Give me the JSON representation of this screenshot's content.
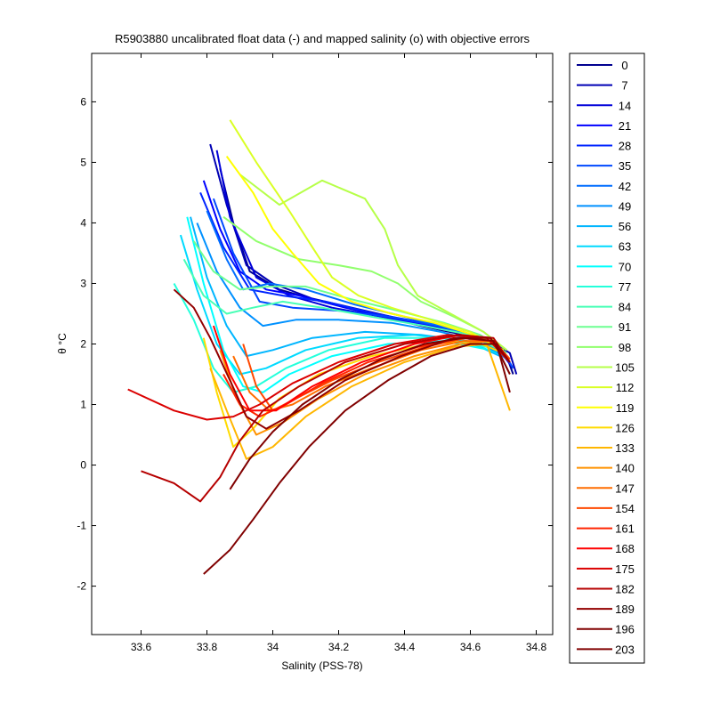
{
  "chart_data": {
    "type": "line",
    "title": "R5903880 uncalibrated float data (-) and mapped salinity (o) with objective errors",
    "xlabel": "Salinity (PSS-78)",
    "ylabel": "θ °C",
    "xlim": [
      33.45,
      34.85
    ],
    "ylim": [
      -2.8,
      6.8
    ],
    "xticks": [
      "33.6",
      "33.8",
      "34",
      "34.2",
      "34.4",
      "34.6",
      "34.8"
    ],
    "yticks": [
      "-2",
      "-1",
      "0",
      "1",
      "2",
      "3",
      "4",
      "5",
      "6"
    ],
    "grid": false,
    "legend": {
      "placement": "outside-right",
      "entries": [
        "0",
        "7",
        "14",
        "21",
        "28",
        "35",
        "42",
        "49",
        "56",
        "63",
        "70",
        "77",
        "84",
        "91",
        "98",
        "105",
        "112",
        "119",
        "126",
        "133",
        "140",
        "147",
        "154",
        "161",
        "168",
        "175",
        "182",
        "189",
        "196",
        "203"
      ],
      "colors": [
        "#00008f",
        "#0000b4",
        "#0000d9",
        "#0000ff",
        "#0024ff",
        "#0048ff",
        "#006dff",
        "#0091ff",
        "#00b6ff",
        "#00daff",
        "#00ffff",
        "#24ffdb",
        "#48ffb6",
        "#6dff92",
        "#91ff6d",
        "#b6ff48",
        "#daff24",
        "#ffff00",
        "#ffdb00",
        "#ffb600",
        "#ff9200",
        "#ff6d00",
        "#ff4800",
        "#ff2400",
        "#ff0000",
        "#db0000",
        "#b60000",
        "#920000",
        "#800000",
        "#800000"
      ]
    },
    "series": [
      {
        "name": "0",
        "x": [
          33.84,
          33.88,
          33.93,
          34.02,
          34.15,
          34.3,
          34.45,
          34.58,
          34.66,
          34.71,
          34.73
        ],
        "y": [
          4.9,
          4.0,
          3.2,
          2.9,
          2.7,
          2.5,
          2.3,
          2.15,
          2.0,
          1.8,
          1.5
        ]
      },
      {
        "name": "7",
        "x": [
          33.81,
          33.86,
          33.92,
          34.0,
          34.12,
          34.28,
          34.44,
          34.57,
          34.66,
          34.72,
          34.74
        ],
        "y": [
          5.3,
          4.3,
          3.3,
          3.0,
          2.75,
          2.55,
          2.35,
          2.2,
          2.05,
          1.85,
          1.5
        ]
      },
      {
        "name": "14",
        "x": [
          33.83,
          33.87,
          33.95,
          34.05,
          34.18,
          34.33,
          34.48,
          34.6,
          34.68,
          34.73
        ],
        "y": [
          5.2,
          4.1,
          3.1,
          2.8,
          2.6,
          2.45,
          2.3,
          2.15,
          1.95,
          1.6
        ]
      },
      {
        "name": "21",
        "x": [
          33.79,
          33.84,
          33.9,
          33.98,
          34.08,
          34.22,
          34.38,
          34.52,
          34.63,
          34.71
        ],
        "y": [
          4.7,
          3.9,
          3.2,
          2.9,
          2.8,
          2.6,
          2.4,
          2.25,
          2.1,
          1.8
        ]
      },
      {
        "name": "28",
        "x": [
          33.78,
          33.85,
          33.93,
          34.03,
          34.16,
          34.31,
          34.46,
          34.58,
          34.67,
          34.72
        ],
        "y": [
          4.5,
          3.6,
          2.9,
          2.8,
          2.7,
          2.5,
          2.35,
          2.2,
          2.0,
          1.7
        ]
      },
      {
        "name": "35",
        "x": [
          33.82,
          33.88,
          33.96,
          34.06,
          34.2,
          34.35,
          34.5,
          34.61,
          34.69,
          34.73
        ],
        "y": [
          4.4,
          3.5,
          2.7,
          2.6,
          2.55,
          2.45,
          2.3,
          2.15,
          1.95,
          1.6
        ]
      },
      {
        "name": "42",
        "x": [
          33.8,
          33.86,
          33.91,
          33.99,
          34.1,
          34.25,
          34.4,
          34.54,
          34.64,
          34.71
        ],
        "y": [
          4.2,
          3.4,
          2.9,
          3.0,
          2.9,
          2.65,
          2.45,
          2.25,
          2.05,
          1.75
        ]
      },
      {
        "name": "49",
        "x": [
          33.77,
          33.83,
          33.9,
          33.97,
          34.07,
          34.2,
          34.36,
          34.51,
          34.62,
          34.7
        ],
        "y": [
          4.0,
          3.2,
          2.6,
          2.3,
          2.4,
          2.4,
          2.35,
          2.2,
          2.05,
          1.8
        ]
      },
      {
        "name": "56",
        "x": [
          33.75,
          33.8,
          33.86,
          33.92,
          34.0,
          34.12,
          34.28,
          34.45,
          34.59,
          34.69
        ],
        "y": [
          4.1,
          3.1,
          2.3,
          1.8,
          1.9,
          2.1,
          2.2,
          2.15,
          2.05,
          1.8
        ]
      },
      {
        "name": "63",
        "x": [
          33.72,
          33.77,
          33.83,
          33.9,
          33.98,
          34.1,
          34.26,
          34.43,
          34.58,
          34.68
        ],
        "y": [
          3.8,
          2.9,
          2.0,
          1.5,
          1.6,
          1.9,
          2.1,
          2.15,
          2.05,
          1.85
        ]
      },
      {
        "name": "70",
        "x": [
          33.74,
          33.79,
          33.85,
          33.91,
          33.97,
          34.05,
          34.18,
          34.35,
          34.52,
          34.66
        ],
        "y": [
          4.1,
          3.0,
          1.9,
          1.3,
          1.2,
          1.5,
          1.8,
          2.0,
          2.05,
          1.9
        ]
      },
      {
        "name": "77",
        "x": [
          33.7,
          33.76,
          33.82,
          33.88,
          33.95,
          34.04,
          34.17,
          34.34,
          34.51,
          34.65
        ],
        "y": [
          3.0,
          2.4,
          1.6,
          1.2,
          1.3,
          1.6,
          1.9,
          2.1,
          2.1,
          1.95
        ]
      },
      {
        "name": "84",
        "x": [
          33.73,
          33.79,
          33.86,
          33.94,
          34.03,
          34.15,
          34.3,
          34.46,
          34.6,
          34.69
        ],
        "y": [
          3.4,
          2.8,
          2.5,
          2.6,
          2.7,
          2.6,
          2.45,
          2.3,
          2.15,
          1.9
        ]
      },
      {
        "name": "91",
        "x": [
          33.76,
          33.82,
          33.9,
          33.99,
          34.1,
          34.23,
          34.38,
          34.52,
          34.63,
          34.71
        ],
        "y": [
          3.7,
          3.2,
          2.9,
          2.95,
          2.95,
          2.75,
          2.55,
          2.35,
          2.15,
          1.85
        ]
      },
      {
        "name": "98",
        "x": [
          33.85,
          33.95,
          34.08,
          34.2,
          34.3,
          34.38,
          34.45,
          34.55,
          34.64,
          34.71
        ],
        "y": [
          4.1,
          3.7,
          3.4,
          3.3,
          3.2,
          3.0,
          2.7,
          2.45,
          2.2,
          1.9
        ]
      },
      {
        "name": "105",
        "x": [
          33.9,
          34.02,
          34.15,
          34.28,
          34.34,
          34.38,
          34.44,
          34.54,
          34.64,
          34.71
        ],
        "y": [
          4.8,
          4.3,
          4.7,
          4.4,
          3.9,
          3.3,
          2.8,
          2.5,
          2.2,
          1.9
        ]
      },
      {
        "name": "112",
        "x": [
          33.87,
          33.95,
          34.05,
          34.12,
          34.18,
          34.26,
          34.36,
          34.48,
          34.6,
          34.7
        ],
        "y": [
          5.7,
          5.0,
          4.2,
          3.6,
          3.1,
          2.8,
          2.6,
          2.4,
          2.2,
          1.9
        ]
      },
      {
        "name": "119",
        "x": [
          33.86,
          33.94,
          34.0,
          34.06,
          34.14,
          34.24,
          34.36,
          34.49,
          34.61,
          34.7
        ],
        "y": [
          5.1,
          4.5,
          3.9,
          3.5,
          3.0,
          2.7,
          2.5,
          2.35,
          2.15,
          1.9
        ]
      },
      {
        "name": "126",
        "x": [
          33.79,
          33.83,
          33.88,
          33.94,
          34.02,
          34.14,
          34.3,
          34.47,
          34.61,
          34.7
        ],
        "y": [
          2.1,
          1.2,
          0.3,
          0.6,
          1.1,
          1.5,
          1.8,
          2.0,
          2.05,
          1.85
        ]
      },
      {
        "name": "133",
        "x": [
          33.81,
          33.86,
          33.92,
          34.0,
          34.1,
          34.24,
          34.4,
          34.55,
          34.65,
          34.72
        ],
        "y": [
          1.6,
          0.9,
          0.1,
          0.3,
          0.8,
          1.3,
          1.7,
          1.95,
          2.0,
          0.9
        ]
      },
      {
        "name": "140",
        "x": [
          33.84,
          33.89,
          33.95,
          34.03,
          34.14,
          34.28,
          34.43,
          34.57,
          34.66,
          34.72
        ],
        "y": [
          1.9,
          1.1,
          0.5,
          0.7,
          1.1,
          1.5,
          1.8,
          2.0,
          2.05,
          1.7
        ]
      },
      {
        "name": "147",
        "x": [
          33.88,
          33.93,
          33.99,
          34.06,
          34.16,
          34.3,
          34.45,
          34.58,
          34.67,
          34.72
        ],
        "y": [
          1.8,
          1.2,
          0.9,
          1.0,
          1.3,
          1.6,
          1.9,
          2.05,
          2.05,
          1.75
        ]
      },
      {
        "name": "154",
        "x": [
          33.91,
          33.95,
          34.0,
          34.07,
          34.18,
          34.32,
          34.46,
          34.59,
          34.67,
          34.72
        ],
        "y": [
          2.0,
          1.3,
          0.9,
          1.1,
          1.4,
          1.7,
          1.95,
          2.1,
          2.05,
          1.75
        ]
      },
      {
        "name": "161",
        "x": [
          33.85,
          33.9,
          33.96,
          34.04,
          34.15,
          34.29,
          34.44,
          34.57,
          34.66,
          34.72
        ],
        "y": [
          1.5,
          1.0,
          0.8,
          1.0,
          1.35,
          1.7,
          1.95,
          2.1,
          2.05,
          1.7
        ]
      },
      {
        "name": "168",
        "x": [
          33.82,
          33.87,
          33.93,
          34.01,
          34.12,
          34.27,
          34.43,
          34.57,
          34.66,
          34.72
        ],
        "y": [
          2.3,
          1.5,
          0.9,
          0.9,
          1.3,
          1.7,
          2.0,
          2.15,
          2.1,
          1.7
        ]
      },
      {
        "name": "175",
        "x": [
          33.56,
          33.7,
          33.8,
          33.88,
          33.96,
          34.06,
          34.2,
          34.37,
          34.53,
          34.65,
          34.72
        ],
        "y": [
          1.25,
          0.9,
          0.75,
          0.8,
          1.0,
          1.35,
          1.7,
          2.0,
          2.15,
          2.1,
          1.7
        ]
      },
      {
        "name": "182",
        "x": [
          33.6,
          33.7,
          33.78,
          33.84,
          33.9,
          33.97,
          34.08,
          34.22,
          34.4,
          34.56,
          34.67,
          34.72
        ],
        "y": [
          -0.1,
          -0.3,
          -0.6,
          -0.2,
          0.4,
          0.9,
          1.3,
          1.7,
          2.0,
          2.15,
          2.1,
          1.7
        ]
      },
      {
        "name": "189",
        "x": [
          33.7,
          33.76,
          33.81,
          33.87,
          33.92,
          33.98,
          34.08,
          34.22,
          34.39,
          34.55,
          34.66,
          34.72
        ],
        "y": [
          2.9,
          2.6,
          2.1,
          1.4,
          0.8,
          0.6,
          0.9,
          1.4,
          1.8,
          2.1,
          2.1,
          1.7
        ]
      },
      {
        "name": "196",
        "x": [
          33.87,
          33.93,
          34.0,
          34.09,
          34.2,
          34.33,
          34.46,
          34.58,
          34.67,
          34.72
        ],
        "y": [
          -0.4,
          0.1,
          0.55,
          1.0,
          1.4,
          1.75,
          2.0,
          2.1,
          2.05,
          1.5
        ]
      },
      {
        "name": "203",
        "x": [
          33.79,
          33.87,
          33.94,
          34.02,
          34.11,
          34.22,
          34.35,
          34.48,
          34.6,
          34.68,
          34.72
        ],
        "y": [
          -1.8,
          -1.4,
          -0.9,
          -0.3,
          0.3,
          0.9,
          1.4,
          1.8,
          2.0,
          2.0,
          1.2
        ]
      }
    ]
  }
}
